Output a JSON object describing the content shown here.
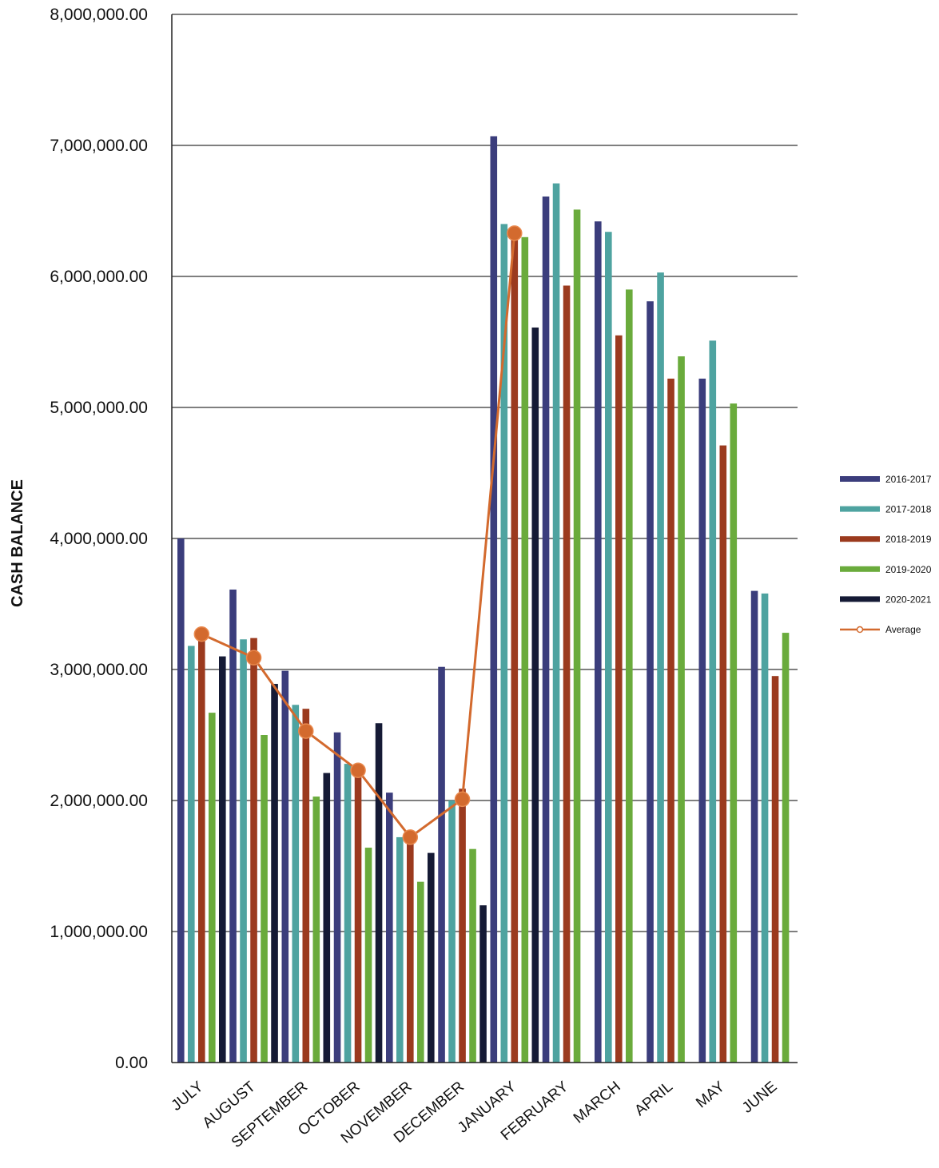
{
  "chart_data": {
    "type": "bar",
    "ylabel": "CASH BALANCE",
    "ylim": [
      0,
      8000000
    ],
    "yticks": [
      "0.00",
      "1,000,000.00",
      "2,000,000.00",
      "3,000,000.00",
      "4,000,000.00",
      "5,000,000.00",
      "6,000,000.00",
      "7,000,000.00",
      "8,000,000.00"
    ],
    "ytick_values": [
      0,
      1000000,
      2000000,
      3000000,
      4000000,
      5000000,
      6000000,
      7000000,
      8000000
    ],
    "grid": true,
    "legend_position": "right",
    "categories": [
      "JULY",
      "AUGUST",
      "SEPTEMBER",
      "OCTOBER",
      "NOVEMBER",
      "DECEMBER",
      "JANUARY",
      "FEBRUARY",
      "MARCH",
      "APRIL",
      "MAY",
      "JUNE"
    ],
    "series": [
      {
        "name": "2016-2017",
        "color": "#3b3d7c",
        "values": [
          4000000,
          3610000,
          2990000,
          2520000,
          2060000,
          3020000,
          7070000,
          6610000,
          6420000,
          5810000,
          5220000,
          3600000
        ]
      },
      {
        "name": "2017-2018",
        "color": "#4ea3a0",
        "values": [
          3180000,
          3230000,
          2730000,
          2280000,
          1720000,
          2000000,
          6400000,
          6710000,
          6340000,
          6030000,
          5510000,
          3580000
        ]
      },
      {
        "name": "2018-2019",
        "color": "#9b3a1e",
        "values": [
          3300000,
          3240000,
          2700000,
          2250000,
          1730000,
          2090000,
          6340000,
          5930000,
          5550000,
          5220000,
          4710000,
          2950000
        ]
      },
      {
        "name": "2019-2020",
        "color": "#6aab3c",
        "values": [
          2670000,
          2500000,
          2030000,
          1640000,
          1380000,
          1630000,
          6300000,
          6510000,
          5900000,
          5390000,
          5030000,
          3280000
        ]
      },
      {
        "name": "2020-2021",
        "color": "#151a35",
        "values": [
          3100000,
          2890000,
          2210000,
          2590000,
          1600000,
          1200000,
          5610000,
          null,
          null,
          null,
          null,
          null
        ]
      }
    ],
    "line_series": {
      "name": "Average",
      "color": "#d36a2e",
      "values": [
        3270000,
        3090000,
        2530000,
        2230000,
        1720000,
        2010000,
        6330000,
        null,
        null,
        null,
        null,
        null
      ]
    }
  }
}
